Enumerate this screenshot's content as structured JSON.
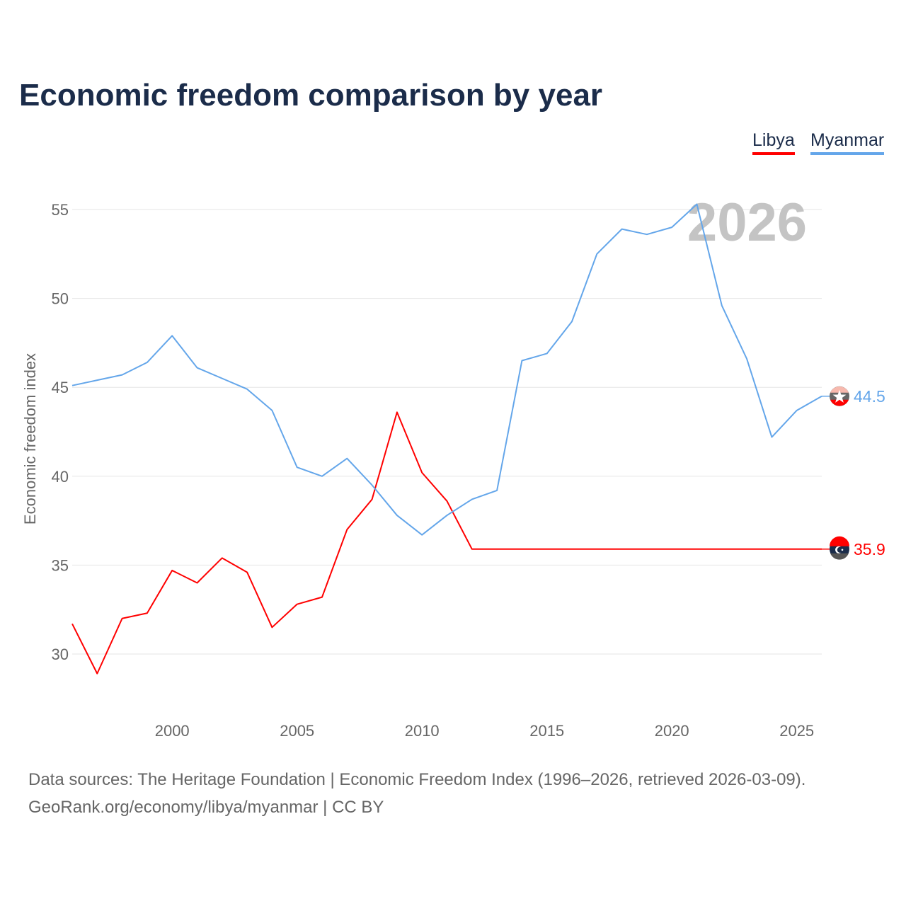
{
  "title": "Economic freedom comparison by year",
  "colors": {
    "libya": "#ff0000",
    "myanmar": "#64a6ea"
  },
  "footer": {
    "line1": "Data sources: The Heritage Foundation | Economic Freedom Index (1996–2026, retrieved 2026-03-09).",
    "line2": "GeoRank.org/economy/libya/myanmar | CC BY"
  },
  "chart_data": {
    "type": "line",
    "title": "Economic freedom comparison by year",
    "ylabel": "Economic freedom index",
    "xlabel": "",
    "watermark_year": "2026",
    "ylim": [
      26.5,
      57
    ],
    "xlim": [
      1996,
      2026
    ],
    "yticks": [
      30,
      35,
      40,
      45,
      50,
      55
    ],
    "xticks": [
      2000,
      2005,
      2010,
      2015,
      2020,
      2025
    ],
    "grid": true,
    "legend_position": "top-right",
    "x": [
      1996,
      1997,
      1998,
      1999,
      2000,
      2001,
      2002,
      2003,
      2004,
      2005,
      2006,
      2007,
      2008,
      2009,
      2010,
      2011,
      2012,
      2013,
      2014,
      2015,
      2016,
      2017,
      2018,
      2019,
      2020,
      2021,
      2022,
      2023,
      2024,
      2025,
      2026
    ],
    "series": [
      {
        "name": "Libya",
        "end_label": "35.9",
        "values": [
          31.7,
          28.9,
          32.0,
          32.3,
          34.7,
          34.0,
          35.4,
          34.6,
          31.5,
          32.8,
          33.2,
          37.0,
          38.7,
          43.6,
          40.2,
          38.6,
          35.9,
          35.9,
          35.9,
          35.9,
          35.9,
          35.9,
          35.9,
          35.9,
          35.9,
          35.9,
          35.9,
          35.9,
          35.9,
          35.9,
          35.9
        ]
      },
      {
        "name": "Myanmar",
        "end_label": "44.5",
        "values": [
          45.1,
          45.4,
          45.7,
          46.4,
          47.9,
          46.1,
          45.5,
          44.9,
          43.7,
          40.5,
          40.0,
          41.0,
          39.5,
          37.8,
          36.7,
          37.8,
          38.7,
          39.2,
          46.5,
          46.9,
          48.7,
          52.5,
          53.9,
          53.6,
          54.0,
          55.3,
          49.6,
          46.6,
          42.2,
          43.7,
          44.5
        ]
      }
    ]
  }
}
